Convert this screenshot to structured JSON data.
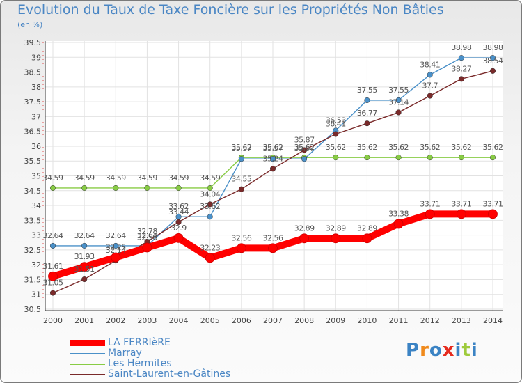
{
  "header": {
    "title": "Evolution du Taux de Taxe Foncière sur les Propriétés Non Bâties",
    "subtitle": "(en %)"
  },
  "logo": {
    "text": "Proxiti",
    "colors": [
      "#3b83c4",
      "#f08a1c",
      "#3b83c4",
      "#e62b1e",
      "#3b83c4",
      "#9ecb3c",
      "#3b83c4"
    ]
  },
  "chart_data": {
    "type": "line",
    "title": "Evolution du Taux de Taxe Foncière sur les Propriétés Non Bâties",
    "ylabel": "(en %)",
    "xlabel": "",
    "x": [
      "2000",
      "2001",
      "2002",
      "2003",
      "2004",
      "2005",
      "2006",
      "2007",
      "2008",
      "2009",
      "2010",
      "2011",
      "2012",
      "2013",
      "2014"
    ],
    "ylim": [
      30.5,
      39.5
    ],
    "yticks": [
      "30.5",
      "31",
      "31.5",
      "32",
      "32.5",
      "33",
      "33.5",
      "34",
      "34.5",
      "35",
      "35.5",
      "36",
      "36.5",
      "37",
      "37.5",
      "38",
      "38.5",
      "39",
      "39.5"
    ],
    "grid": true,
    "legend_position": "bottom-left",
    "series": [
      {
        "name": "LA FERRIèRE",
        "color": "#ff0000",
        "values": [
          31.61,
          31.93,
          32.25,
          32.58,
          32.9,
          32.23,
          32.56,
          32.56,
          32.89,
          32.89,
          32.89,
          33.38,
          33.71,
          33.71,
          33.71
        ],
        "labels": [
          "31.61",
          "31.93",
          "32.25",
          "32.58",
          "32.9",
          "32.23",
          "32.56",
          "32.56",
          "32.89",
          "32.89",
          "32.89",
          "33.38",
          "33.71",
          "33.71",
          "33.71"
        ]
      },
      {
        "name": "Marray",
        "color": "#4a90c8",
        "values": [
          32.64,
          32.64,
          32.64,
          32.64,
          33.62,
          33.62,
          35.57,
          35.57,
          35.57,
          36.53,
          37.55,
          37.55,
          38.41,
          38.98,
          38.98
        ],
        "labels": [
          "32.64",
          "32.64",
          "32.64",
          "32.64",
          "33.62",
          "33.62",
          "35.57",
          "35.57",
          "35.57",
          "36.53",
          "37.55",
          "37.55",
          "38.41",
          "38.98",
          "38.98"
        ]
      },
      {
        "name": "Les Hermites",
        "color": "#88cc44",
        "values": [
          34.59,
          34.59,
          34.59,
          34.59,
          34.59,
          34.59,
          35.62,
          35.62,
          35.62,
          35.62,
          35.62,
          35.62,
          35.62,
          35.62,
          35.62
        ],
        "labels": [
          "34.59",
          "34.59",
          "34.59",
          "34.59",
          "34.59",
          "34.59",
          "35.62",
          "35.62",
          "35.62",
          "35.62",
          "35.62",
          "35.62",
          "35.62",
          "35.62",
          "35.62"
        ]
      },
      {
        "name": "Saint-Laurent-en-Gâtines",
        "color": "#7a2a2a",
        "values": [
          31.05,
          31.51,
          32.14,
          32.78,
          33.44,
          34.04,
          34.55,
          35.24,
          35.87,
          36.41,
          36.77,
          37.14,
          37.7,
          38.27,
          38.54
        ],
        "labels": [
          "31.05",
          "31.51",
          "32.14",
          "32.78",
          "33.44",
          "34.04",
          "34.55",
          "35.24",
          "35.87",
          "36.41",
          "36.77",
          "37.14",
          "37.7",
          "38.27",
          "38.54"
        ]
      }
    ]
  }
}
